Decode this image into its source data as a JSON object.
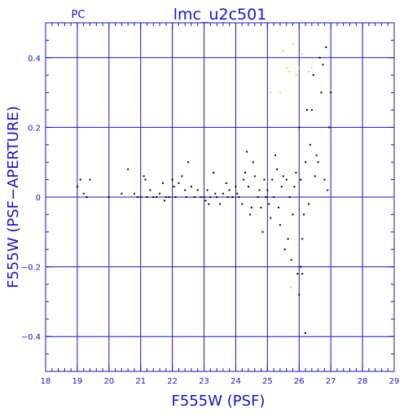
{
  "chart_data": {
    "type": "scatter",
    "title": "lmc_u2c501",
    "subtitle": "PC",
    "xlabel": "F555W (PSF)",
    "ylabel": "F555W (PSF−APERTURE)",
    "xlim": [
      18,
      29
    ],
    "ylim": [
      -0.5,
      0.5
    ],
    "xticks": [
      18,
      19,
      20,
      21,
      22,
      23,
      24,
      25,
      26,
      27,
      28,
      29
    ],
    "yticks": [
      -0.4,
      -0.2,
      0,
      0.2,
      0.4
    ],
    "xtick_labels": [
      "18",
      "19",
      "20",
      "21",
      "22",
      "23",
      "24",
      "25",
      "26",
      "27",
      "28",
      "29"
    ],
    "ytick_labels": [
      "−0.4",
      "−0.2",
      "0",
      "0.2",
      "0.4"
    ],
    "grid": true,
    "axis_color": "#1515c8",
    "series": [
      {
        "color": "#000000",
        "points": [
          [
            19.0,
            0.03
          ],
          [
            19.1,
            0.05
          ],
          [
            19.2,
            0.01
          ],
          [
            19.3,
            0.0
          ],
          [
            19.4,
            0.05
          ],
          [
            20.0,
            0.0
          ],
          [
            20.4,
            0.01
          ],
          [
            20.6,
            0.08
          ],
          [
            20.8,
            0.01
          ],
          [
            20.9,
            0.0
          ],
          [
            21.0,
            0.0
          ],
          [
            21.1,
            0.06
          ],
          [
            21.15,
            0.05
          ],
          [
            21.2,
            0.0
          ],
          [
            21.3,
            0.02
          ],
          [
            21.4,
            0.0
          ],
          [
            21.5,
            0.0
          ],
          [
            21.6,
            0.01
          ],
          [
            21.7,
            0.04
          ],
          [
            21.75,
            -0.01
          ],
          [
            21.8,
            0.0
          ],
          [
            21.9,
            0.0
          ],
          [
            22.0,
            0.05
          ],
          [
            22.05,
            0.03
          ],
          [
            22.1,
            0.0
          ],
          [
            22.2,
            0.04
          ],
          [
            22.3,
            0.06
          ],
          [
            22.4,
            0.02
          ],
          [
            22.45,
            0.0
          ],
          [
            22.5,
            0.1
          ],
          [
            22.6,
            0.03
          ],
          [
            22.7,
            0.0
          ],
          [
            22.8,
            0.02
          ],
          [
            22.9,
            0.0
          ],
          [
            23.0,
            0.0
          ],
          [
            23.05,
            -0.01
          ],
          [
            23.1,
            0.02
          ],
          [
            23.15,
            -0.02
          ],
          [
            23.2,
            0.0
          ],
          [
            23.3,
            0.07
          ],
          [
            23.35,
            0.01
          ],
          [
            23.4,
            0.0
          ],
          [
            23.5,
            -0.02
          ],
          [
            23.6,
            0.01
          ],
          [
            23.7,
            0.04
          ],
          [
            23.75,
            0.0
          ],
          [
            23.8,
            0.02
          ],
          [
            23.9,
            0.0
          ],
          [
            24.0,
            0.03
          ],
          [
            24.05,
            0.01
          ],
          [
            24.1,
            0.0
          ],
          [
            24.2,
            -0.02
          ],
          [
            24.25,
            0.05
          ],
          [
            24.3,
            0.07
          ],
          [
            24.35,
            0.13
          ],
          [
            24.4,
            0.03
          ],
          [
            24.45,
            -0.05
          ],
          [
            24.5,
            -0.03
          ],
          [
            24.55,
            0.1
          ],
          [
            24.6,
            0.06
          ],
          [
            24.7,
            0.0
          ],
          [
            24.75,
            0.02
          ],
          [
            24.8,
            -0.03
          ],
          [
            24.85,
            -0.1
          ],
          [
            24.9,
            0.05
          ],
          [
            24.95,
            0.0
          ],
          [
            25.0,
            0.02
          ],
          [
            25.05,
            -0.02
          ],
          [
            25.1,
            -0.06
          ],
          [
            25.15,
            0.05
          ],
          [
            25.2,
            0.0
          ],
          [
            25.25,
            0.12
          ],
          [
            25.3,
            0.08
          ],
          [
            25.35,
            -0.03
          ],
          [
            25.4,
            -0.08
          ],
          [
            25.45,
            0.03
          ],
          [
            25.5,
            0.06
          ],
          [
            25.55,
            -0.15
          ],
          [
            25.6,
            0.05
          ],
          [
            25.65,
            -0.12
          ],
          [
            25.7,
            0.0
          ],
          [
            25.75,
            -0.18
          ],
          [
            25.8,
            -0.05
          ],
          [
            25.85,
            0.03
          ],
          [
            25.9,
            0.07
          ],
          [
            25.95,
            -0.22
          ],
          [
            26.0,
            0.2
          ],
          [
            26.05,
            0.05
          ],
          [
            26.1,
            -0.12
          ],
          [
            26.15,
            -0.05
          ],
          [
            26.2,
            0.1
          ],
          [
            26.25,
            0.25
          ],
          [
            26.3,
            -0.02
          ],
          [
            26.35,
            0.15
          ],
          [
            26.4,
            0.25
          ],
          [
            26.45,
            0.35
          ],
          [
            26.5,
            0.06
          ],
          [
            26.55,
            0.12
          ],
          [
            26.6,
            0.1
          ],
          [
            26.65,
            0.4
          ],
          [
            26.7,
            0.3
          ],
          [
            26.75,
            0.38
          ],
          [
            26.8,
            0.05
          ],
          [
            26.85,
            0.43
          ],
          [
            26.9,
            0.02
          ],
          [
            26.95,
            0.2
          ],
          [
            27.0,
            0.3
          ],
          [
            26.0,
            -0.28
          ],
          [
            26.2,
            -0.39
          ],
          [
            26.05,
            -0.2
          ],
          [
            26.1,
            -0.22
          ]
        ]
      },
      {
        "color": "#ffd21a",
        "points": [
          [
            25.1,
            0.3
          ],
          [
            25.4,
            0.3
          ],
          [
            25.5,
            0.42
          ],
          [
            25.6,
            0.37
          ],
          [
            25.7,
            0.36
          ],
          [
            25.8,
            0.44
          ],
          [
            25.9,
            0.35
          ],
          [
            26.0,
            0.37
          ],
          [
            26.1,
            0.41
          ],
          [
            26.3,
            0.36
          ],
          [
            26.4,
            0.37
          ],
          [
            25.75,
            -0.26
          ]
        ]
      }
    ]
  }
}
